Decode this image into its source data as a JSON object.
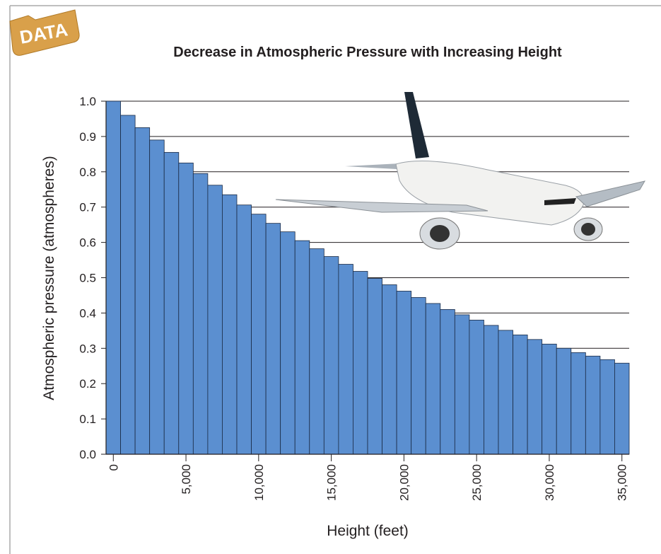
{
  "badge": "DATA",
  "chart_data": {
    "type": "bar",
    "title": "Decrease in Atmospheric Pressure with Increasing Height",
    "x_label": "Height (feet)",
    "y_label": "Atmospheric pressure (atmospheres)",
    "x": [
      0,
      1000,
      2000,
      3000,
      4000,
      5000,
      6000,
      7000,
      8000,
      9000,
      10000,
      11000,
      12000,
      13000,
      14000,
      15000,
      16000,
      17000,
      18000,
      19000,
      20000,
      21000,
      22000,
      23000,
      24000,
      25000,
      26000,
      27000,
      28000,
      29000,
      30000,
      31000,
      32000,
      33000,
      34000,
      35000
    ],
    "values": [
      1.0,
      0.96,
      0.925,
      0.89,
      0.855,
      0.825,
      0.795,
      0.762,
      0.735,
      0.706,
      0.68,
      0.654,
      0.63,
      0.605,
      0.582,
      0.56,
      0.538,
      0.518,
      0.498,
      0.48,
      0.462,
      0.444,
      0.427,
      0.41,
      0.395,
      0.38,
      0.365,
      0.351,
      0.338,
      0.325,
      0.312,
      0.3,
      0.288,
      0.278,
      0.268,
      0.258
    ],
    "color": "#5b8fd0",
    "xlim": [
      -500,
      35500
    ],
    "xticks": [
      0,
      {
        "value": 5000,
        "label": "5,000"
      },
      {
        "value": 10000,
        "label": "10,000"
      },
      {
        "value": 15000,
        "label": "15,000"
      },
      {
        "value": 20000,
        "label": "20,000"
      },
      {
        "value": 25000,
        "label": "25,000"
      },
      {
        "value": 30000,
        "label": "30,000"
      },
      {
        "value": 35000,
        "label": "35,000"
      }
    ],
    "ylim": [
      0,
      1
    ],
    "yticks": [
      {
        "value": 0,
        "label": "0.0"
      },
      0.1,
      0.2,
      0.3,
      0.4,
      0.5,
      0.6,
      0.7,
      0.8,
      0.9,
      {
        "value": 1,
        "label": "1.0"
      }
    ],
    "grid": true
  }
}
